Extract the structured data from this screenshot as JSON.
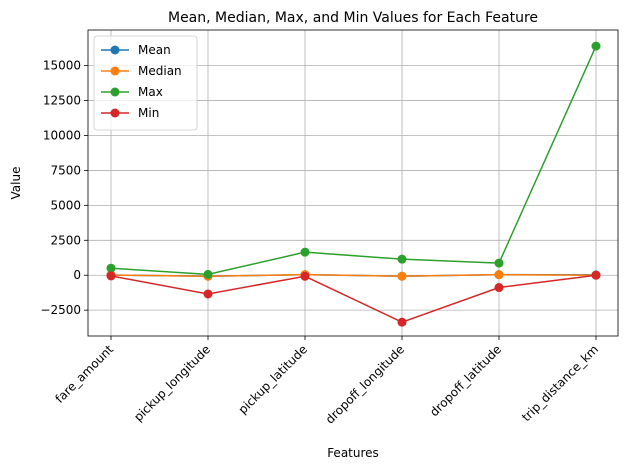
{
  "chart_data": {
    "type": "line",
    "title": "Mean, Median, Max, and Min Values for Each Feature",
    "xlabel": "Features",
    "ylabel": "Value",
    "categories": [
      "fare_amount",
      "pickup_longitude",
      "pickup_latitude",
      "dropoff_longitude",
      "dropoff_latitude",
      "trip_distance_km"
    ],
    "ylim": [
      -4350,
      17550
    ],
    "yticks": [
      -2500,
      0,
      2500,
      5000,
      7500,
      10000,
      12500,
      15000
    ],
    "ytick_labels": [
      "−2500",
      "0",
      "2500",
      "5000",
      "7500",
      "10000",
      "12500",
      "15000"
    ],
    "grid": true,
    "legend_position": "top-left",
    "series": [
      {
        "name": "Mean",
        "color": "#1f77b4",
        "values": [
          11.4,
          -72.5,
          39.9,
          -72.5,
          39.9,
          20.5
        ]
      },
      {
        "name": "Median",
        "color": "#ff7f0e",
        "values": [
          8.5,
          -73.98,
          40.75,
          -73.98,
          40.75,
          2.2
        ]
      },
      {
        "name": "Max",
        "color": "#2ca02c",
        "values": [
          500,
          60,
          1650,
          1150,
          870,
          16400
        ]
      },
      {
        "name": "Min",
        "color": "#d62728",
        "values": [
          -50,
          -1340,
          -75,
          -3360,
          -880,
          0
        ]
      }
    ]
  }
}
